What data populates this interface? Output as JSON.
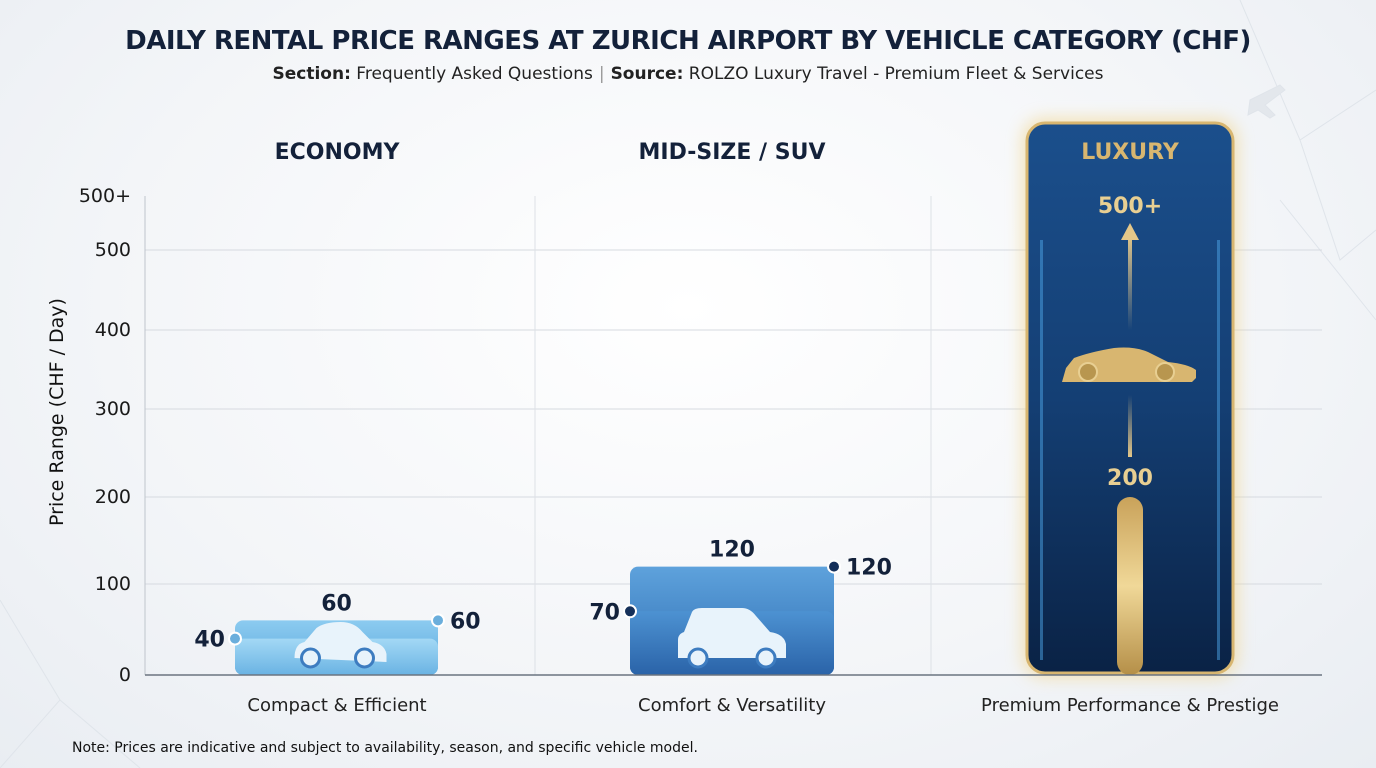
{
  "chart_data": {
    "type": "bar",
    "subtype": "floating range bar",
    "title": "DAILY RENTAL PRICE RANGES AT ZURICH AIRPORT BY VEHICLE CATEGORY (CHF)",
    "subtitle": {
      "section_label": "Section:",
      "section_value": "Frequently Asked Questions",
      "source_label": "Source:",
      "source_value": "ROLZO Luxury Travel - Premium Fleet & Services"
    },
    "ylabel": "Price Range (CHF / Day)",
    "yticks": [
      "0",
      "100",
      "200",
      "300",
      "400",
      "500",
      "500+"
    ],
    "ylim": [
      0,
      500
    ],
    "grid": true,
    "categories": [
      "ECONOMY",
      "MID-SIZE / SUV",
      "LUXURY"
    ],
    "descriptions": [
      "Compact & Efficient",
      "Comfort & Versatility",
      "Premium Performance & Prestige"
    ],
    "ranges": [
      {
        "min": 40,
        "max": 60,
        "min_label": "40",
        "max_label": "60"
      },
      {
        "min": 70,
        "max": 120,
        "min_label": "70",
        "max_label": "120"
      },
      {
        "min": 200,
        "max": 500,
        "min_label": "200",
        "max_label": "500+",
        "open_ended": true
      }
    ],
    "colors": {
      "economy": "#7fbfe8",
      "midsize": "#3f82c6",
      "luxury": "#0e2f5e",
      "gold": "#d8b670",
      "text": "#13213a"
    },
    "icons": [
      "compact-car-icon",
      "suv-icon",
      "sports-car-icon"
    ]
  },
  "note": "Note: Prices are indicative and subject to availability, season, and specific vehicle model."
}
